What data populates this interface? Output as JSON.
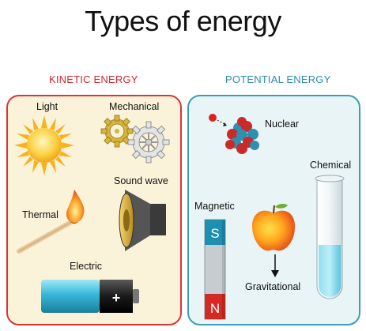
{
  "title": "Types of energy",
  "kinetic": {
    "heading": "KINETIC ENERGY",
    "items": {
      "light": "Light",
      "mechanical": "Mechanical",
      "thermal": "Thermal",
      "sound_wave": "Sound wave",
      "electric": "Electric"
    },
    "battery_sign": "+"
  },
  "potential": {
    "heading": "POTENTIAL ENERGY",
    "items": {
      "nuclear": "Nuclear",
      "chemical": "Chemical",
      "magnetic": "Magnetic",
      "gravitational": "Gravitational"
    },
    "magnet_poles": {
      "south": "S",
      "north": "N"
    }
  },
  "colors": {
    "kinetic_accent": "#d9343a",
    "potential_accent": "#3a9fb4",
    "kinetic_panel": "#fbf3d9",
    "potential_panel": "#e8f4f5"
  },
  "icons": [
    "sun-icon",
    "gears-icon",
    "match-flame-icon",
    "speaker-icon",
    "battery-icon",
    "atom-nucleus-icon",
    "test-tube-icon",
    "magnet-icon",
    "apple-icon",
    "down-arrow-icon"
  ]
}
